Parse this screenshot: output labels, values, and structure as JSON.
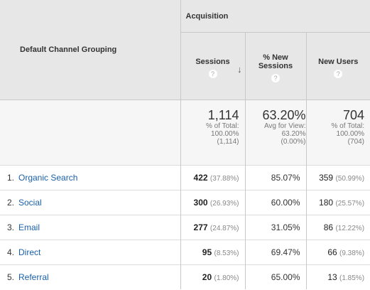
{
  "header": {
    "group_label": "Acquisition",
    "dimension_label": "Default Channel Grouping",
    "columns": [
      {
        "label_line1": "Sessions",
        "label_line2": "",
        "help": "?"
      },
      {
        "label_line1": "% New",
        "label_line2": "Sessions",
        "help": "?"
      },
      {
        "label_line1": "New Users",
        "label_line2": "",
        "help": "?"
      }
    ],
    "sort_icon": "sort-down-arrow-icon"
  },
  "totals": {
    "sessions": {
      "value": "1,114",
      "line1": "% of Total:",
      "line2": "100.00%",
      "line3": "(1,114)"
    },
    "new_sessions": {
      "value": "63.20%",
      "line1": "Avg for View:",
      "line2": "63.20%",
      "line3": "(0.00%)"
    },
    "new_users": {
      "value": "704",
      "line1": "% of Total:",
      "line2": "100.00%",
      "line3": "(704)"
    }
  },
  "rows": [
    {
      "index": "1.",
      "channel": "Organic Search",
      "sessions": "422",
      "sessions_pct": "(37.88%)",
      "new_sessions": "85.07%",
      "new_users": "359",
      "new_users_pct": "(50.99%)"
    },
    {
      "index": "2.",
      "channel": "Social",
      "sessions": "300",
      "sessions_pct": "(26.93%)",
      "new_sessions": "60.00%",
      "new_users": "180",
      "new_users_pct": "(25.57%)"
    },
    {
      "index": "3.",
      "channel": "Email",
      "sessions": "277",
      "sessions_pct": "(24.87%)",
      "new_sessions": "31.05%",
      "new_users": "86",
      "new_users_pct": "(12.22%)"
    },
    {
      "index": "4.",
      "channel": "Direct",
      "sessions": "95",
      "sessions_pct": "(8.53%)",
      "new_sessions": "69.47%",
      "new_users": "66",
      "new_users_pct": "(9.38%)"
    },
    {
      "index": "5.",
      "channel": "Referral",
      "sessions": "20",
      "sessions_pct": "(1.80%)",
      "new_sessions": "65.00%",
      "new_users": "13",
      "new_users_pct": "(1.85%)"
    }
  ],
  "colors": {
    "link": "#1a5fa8",
    "header_bg": "#e7e7e7",
    "totals_bg": "#f6f6f6"
  }
}
